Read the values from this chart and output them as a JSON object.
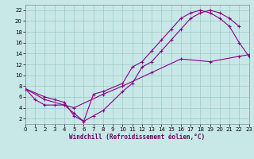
{
  "background_color": "#c8e8e8",
  "grid_color": "#9dc8c8",
  "line_color": "#880088",
  "xlabel": "Windchill (Refroidissement éolien,°C)",
  "xlim": [
    0,
    23
  ],
  "ylim": [
    1,
    23
  ],
  "ytick_vals": [
    2,
    4,
    6,
    8,
    10,
    12,
    14,
    16,
    18,
    20,
    22
  ],
  "xtick_vals": [
    0,
    1,
    2,
    3,
    4,
    5,
    6,
    7,
    8,
    9,
    10,
    11,
    12,
    13,
    14,
    15,
    16,
    17,
    18,
    19,
    20,
    21,
    22,
    23
  ],
  "line1_x": [
    0,
    1,
    2,
    3,
    4,
    5,
    6,
    7,
    8,
    10,
    11,
    12,
    13,
    14,
    15,
    16,
    17,
    18,
    19,
    20,
    21,
    22
  ],
  "line1_y": [
    7.5,
    5.5,
    4.5,
    4.5,
    4.5,
    3.0,
    1.5,
    2.5,
    3.5,
    7.0,
    8.5,
    11.5,
    12.5,
    14.5,
    16.5,
    18.5,
    20.5,
    21.5,
    22.0,
    21.5,
    20.5,
    19.0
  ],
  "line2_x": [
    0,
    2,
    3,
    4,
    5,
    6,
    7,
    8,
    10,
    11,
    12,
    13,
    14,
    15,
    16,
    17,
    18,
    19,
    20,
    21,
    22,
    23
  ],
  "line2_y": [
    7.5,
    6.0,
    5.5,
    5.0,
    2.5,
    1.5,
    6.5,
    7.0,
    8.5,
    11.5,
    12.5,
    14.5,
    16.5,
    18.5,
    20.5,
    21.5,
    22.0,
    21.5,
    20.5,
    19.0,
    16.0,
    13.5
  ],
  "line3_x": [
    0,
    2,
    5,
    8,
    10,
    13,
    16,
    19,
    22,
    23
  ],
  "line3_y": [
    7.5,
    5.5,
    4.0,
    6.5,
    8.0,
    10.5,
    13.0,
    12.5,
    13.5,
    13.8
  ],
  "xlabel_fontsize": 5.5,
  "tick_fontsize": 5,
  "linewidth": 0.8,
  "markersize": 3
}
